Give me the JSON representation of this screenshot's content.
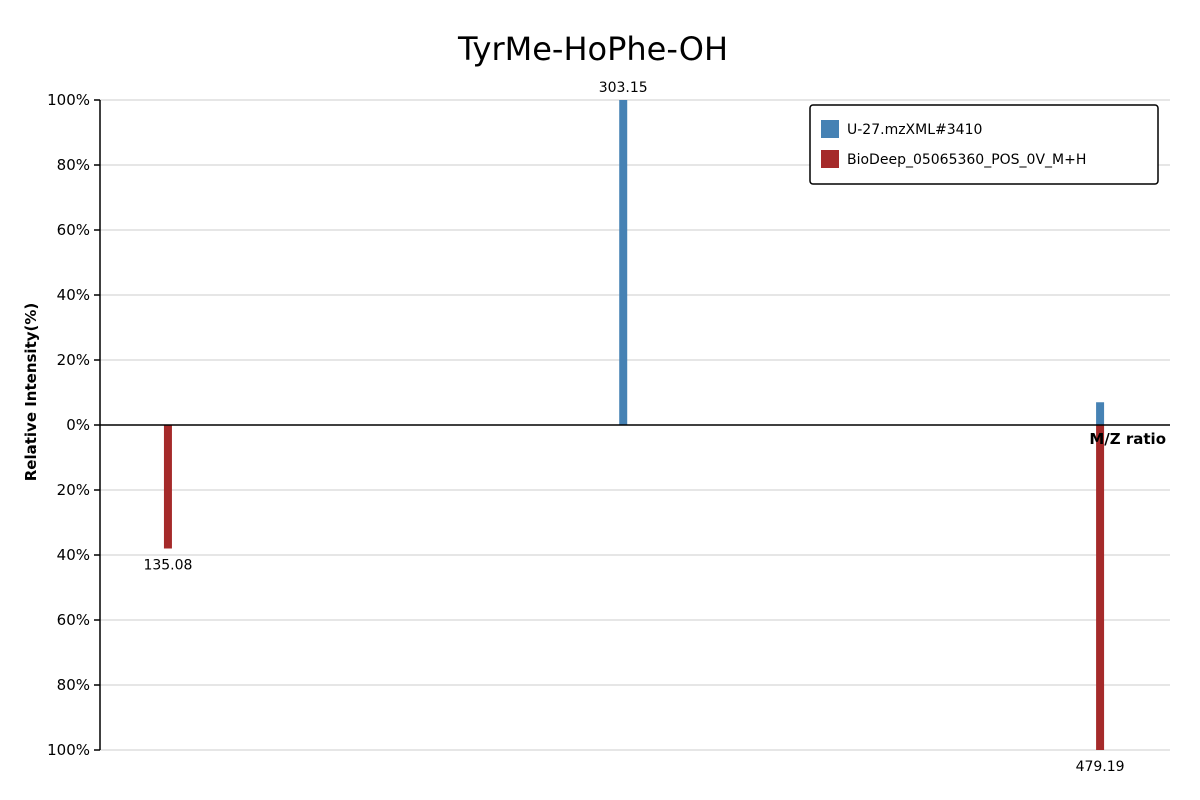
{
  "chart_data": {
    "type": "bar",
    "title": "TyrMe-HoPhe-OH",
    "xlabel": "M/Z ratio",
    "ylabel": "Relative Intensity(%)",
    "xlim": [
      110,
      505
    ],
    "ylim": [
      -100,
      100
    ],
    "y_ticks": [
      {
        "value": 100,
        "label": "100%"
      },
      {
        "value": 80,
        "label": "80%"
      },
      {
        "value": 60,
        "label": "60%"
      },
      {
        "value": 40,
        "label": "40%"
      },
      {
        "value": 20,
        "label": "20%"
      },
      {
        "value": 0,
        "label": "0%"
      },
      {
        "value": -20,
        "label": "20%"
      },
      {
        "value": -40,
        "label": "40%"
      },
      {
        "value": -60,
        "label": "60%"
      },
      {
        "value": -80,
        "label": "80%"
      },
      {
        "value": -100,
        "label": "100%"
      }
    ],
    "grid": true,
    "legend_position": "top-right",
    "series": [
      {
        "name": "U-27.mzXML#3410",
        "color": "#4682b4",
        "direction": "up",
        "points": [
          {
            "mz": 303.15,
            "intensity": 100,
            "label": "303.15"
          },
          {
            "mz": 479.19,
            "intensity": 7,
            "label": ""
          }
        ]
      },
      {
        "name": "BioDeep_05065360_POS_0V_M+H",
        "color": "#a52a2a",
        "direction": "down",
        "points": [
          {
            "mz": 135.08,
            "intensity": 38,
            "label": "135.08"
          },
          {
            "mz": 479.19,
            "intensity": 100,
            "label": "479.19"
          }
        ]
      }
    ]
  }
}
